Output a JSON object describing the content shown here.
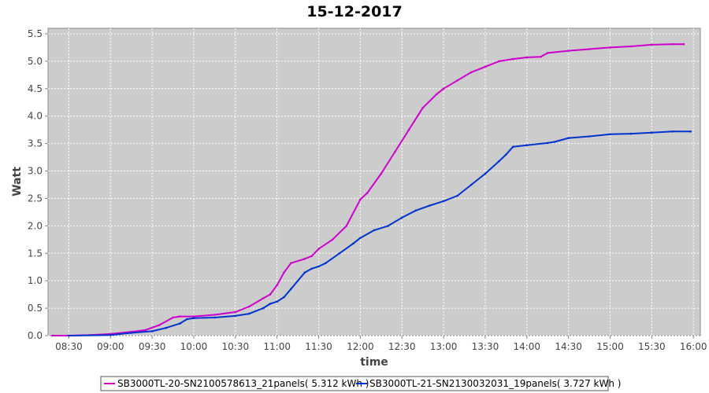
{
  "chart_data": {
    "type": "line",
    "title": "15-12-2017",
    "xlabel": "time",
    "ylabel": "Watt",
    "x_ticks": [
      "08:30",
      "09:00",
      "09:30",
      "10:00",
      "10:30",
      "11:00",
      "11:30",
      "12:00",
      "12:30",
      "13:00",
      "13:30",
      "14:00",
      "14:30",
      "15:00",
      "15:30",
      "16:00"
    ],
    "xlim": [
      "08:15",
      "16:05"
    ],
    "ylim": [
      0,
      5.6
    ],
    "y_ticks": [
      "0.0",
      "0.5",
      "1.0",
      "1.5",
      "2.0",
      "2.5",
      "3.0",
      "3.5",
      "4.0",
      "4.5",
      "5.0",
      "5.5"
    ],
    "grid": true,
    "legend_position": "bottom",
    "plot_background": "#cccccc",
    "series": [
      {
        "name": "SB3000TL-20-SN2100578613_21panels( 5.312 kWh )",
        "color": "#cc00cc",
        "points": [
          [
            "08:18",
            0.0
          ],
          [
            "08:30",
            0.0
          ],
          [
            "08:45",
            0.01
          ],
          [
            "09:00",
            0.03
          ],
          [
            "09:15",
            0.07
          ],
          [
            "09:25",
            0.1
          ],
          [
            "09:35",
            0.19
          ],
          [
            "09:45",
            0.33
          ],
          [
            "09:50",
            0.35
          ],
          [
            "10:00",
            0.35
          ],
          [
            "10:15",
            0.38
          ],
          [
            "10:30",
            0.43
          ],
          [
            "10:40",
            0.53
          ],
          [
            "10:50",
            0.68
          ],
          [
            "10:55",
            0.75
          ],
          [
            "11:00",
            0.92
          ],
          [
            "11:05",
            1.15
          ],
          [
            "11:10",
            1.32
          ],
          [
            "11:20",
            1.4
          ],
          [
            "11:25",
            1.45
          ],
          [
            "11:30",
            1.58
          ],
          [
            "11:40",
            1.75
          ],
          [
            "11:50",
            2.0
          ],
          [
            "12:00",
            2.48
          ],
          [
            "12:05",
            2.6
          ],
          [
            "12:15",
            2.95
          ],
          [
            "12:25",
            3.35
          ],
          [
            "12:35",
            3.75
          ],
          [
            "12:45",
            4.15
          ],
          [
            "12:55",
            4.4
          ],
          [
            "13:00",
            4.5
          ],
          [
            "13:10",
            4.65
          ],
          [
            "13:20",
            4.8
          ],
          [
            "13:30",
            4.9
          ],
          [
            "13:40",
            5.0
          ],
          [
            "13:50",
            5.04
          ],
          [
            "14:00",
            5.07
          ],
          [
            "14:10",
            5.08
          ],
          [
            "14:15",
            5.15
          ],
          [
            "14:30",
            5.19
          ],
          [
            "14:45",
            5.22
          ],
          [
            "15:00",
            5.25
          ],
          [
            "15:15",
            5.27
          ],
          [
            "15:30",
            5.3
          ],
          [
            "15:45",
            5.31
          ],
          [
            "15:53",
            5.31
          ]
        ]
      },
      {
        "name": "SB3000TL-21-SN2130032031_19panels( 3.727 kWh )",
        "color": "#0033cc",
        "points": [
          [
            "08:30",
            0.0
          ],
          [
            "09:00",
            0.01
          ],
          [
            "09:15",
            0.05
          ],
          [
            "09:30",
            0.08
          ],
          [
            "09:40",
            0.14
          ],
          [
            "09:50",
            0.22
          ],
          [
            "09:55",
            0.3
          ],
          [
            "10:00",
            0.32
          ],
          [
            "10:15",
            0.33
          ],
          [
            "10:30",
            0.36
          ],
          [
            "10:40",
            0.4
          ],
          [
            "10:50",
            0.5
          ],
          [
            "10:55",
            0.58
          ],
          [
            "11:00",
            0.62
          ],
          [
            "11:05",
            0.7
          ],
          [
            "11:10",
            0.85
          ],
          [
            "11:20",
            1.15
          ],
          [
            "11:25",
            1.22
          ],
          [
            "11:30",
            1.26
          ],
          [
            "11:35",
            1.32
          ],
          [
            "11:45",
            1.5
          ],
          [
            "11:55",
            1.68
          ],
          [
            "12:00",
            1.78
          ],
          [
            "12:10",
            1.92
          ],
          [
            "12:20",
            2.0
          ],
          [
            "12:30",
            2.15
          ],
          [
            "12:40",
            2.28
          ],
          [
            "12:50",
            2.37
          ],
          [
            "13:00",
            2.45
          ],
          [
            "13:10",
            2.55
          ],
          [
            "13:20",
            2.75
          ],
          [
            "13:30",
            2.95
          ],
          [
            "13:40",
            3.18
          ],
          [
            "13:45",
            3.3
          ],
          [
            "13:50",
            3.44
          ],
          [
            "14:00",
            3.47
          ],
          [
            "14:15",
            3.51
          ],
          [
            "14:20",
            3.53
          ],
          [
            "14:30",
            3.6
          ],
          [
            "14:45",
            3.63
          ],
          [
            "15:00",
            3.67
          ],
          [
            "15:15",
            3.68
          ],
          [
            "15:30",
            3.7
          ],
          [
            "15:45",
            3.72
          ],
          [
            "15:58",
            3.72
          ]
        ]
      }
    ]
  }
}
